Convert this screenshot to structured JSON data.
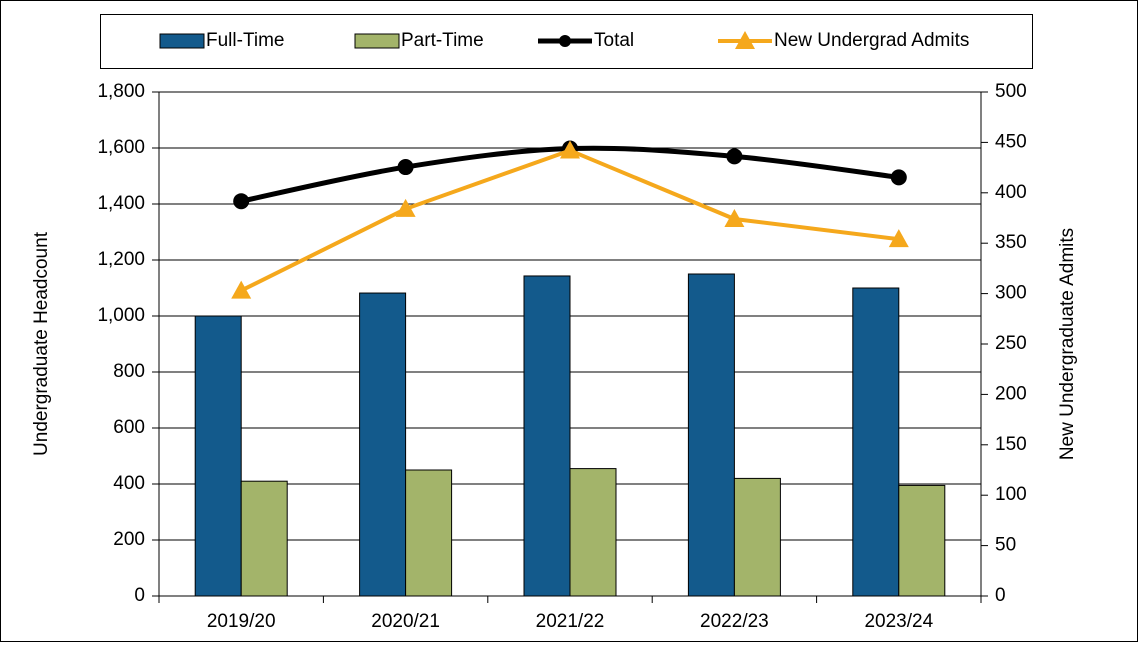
{
  "chart_data": {
    "type": "bar",
    "categories": [
      "2019/20",
      "2020/21",
      "2021/22",
      "2022/23",
      "2023/24"
    ],
    "series": [
      {
        "name": "Full-Time",
        "type": "bar",
        "color": "#135a8c",
        "values": [
          1000,
          1082,
          1143,
          1150,
          1100
        ]
      },
      {
        "name": "Part-Time",
        "type": "bar",
        "color": "#a3b46a",
        "values": [
          410,
          450,
          455,
          420,
          395
        ]
      },
      {
        "name": "Total",
        "type": "line",
        "color": "#000000",
        "marker": "circle",
        "values": [
          1410,
          1532,
          1598,
          1570,
          1495
        ]
      },
      {
        "name": "New Undergrad Admits",
        "type": "line",
        "axis": "y2",
        "color": "#f5a81c",
        "marker": "triangle",
        "values": [
          303,
          384,
          442,
          374,
          354
        ]
      }
    ],
    "ylabel": "Undergraduate Headcount",
    "y2label": "New Undergraduate Admits",
    "ylim": [
      0,
      1800
    ],
    "yticks": [
      0,
      200,
      400,
      600,
      800,
      {
        "value": 1000,
        "label": "1,000"
      },
      {
        "value": 1200,
        "label": "1,200"
      },
      {
        "value": 1400,
        "label": "1,400"
      },
      {
        "value": 1600,
        "label": "1,600"
      },
      {
        "value": 1800,
        "label": "1,800"
      }
    ],
    "y2lim": [
      0,
      500
    ],
    "y2ticks": [
      0,
      50,
      100,
      150,
      200,
      250,
      300,
      350,
      400,
      450,
      500
    ],
    "grid": true,
    "legend": "top"
  }
}
